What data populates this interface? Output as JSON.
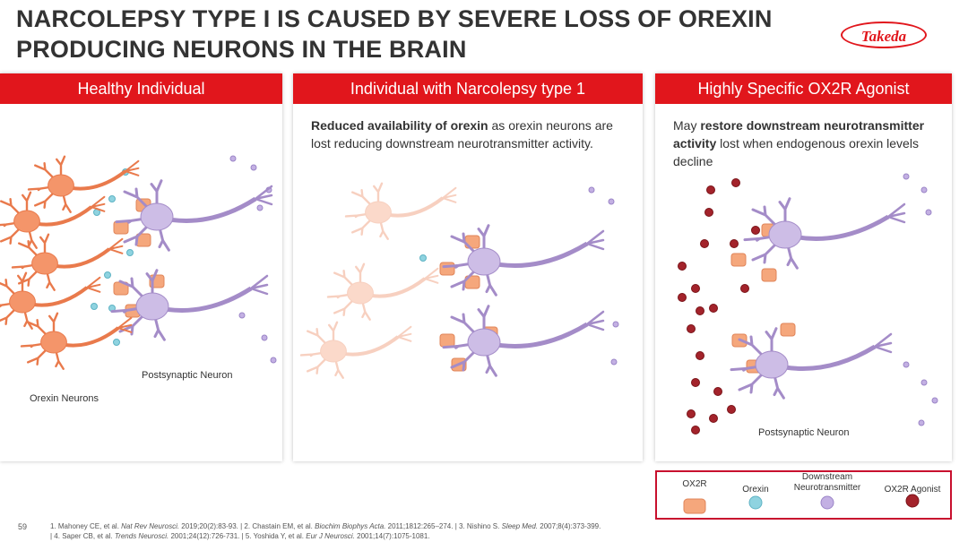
{
  "header": {
    "title_lines": [
      "NARCOLEPSY TYPE I IS CAUSED BY SEVERE LOSS OF OREXIN",
      "PRODUCING NEURONS IN THE BRAIN"
    ],
    "logo": "Takeda"
  },
  "panels": [
    {
      "heading": "Healthy Individual",
      "labels": [
        "Postsynaptic Neuron",
        "Orexin Neurons"
      ]
    },
    {
      "heading": "Individual with Narcolepsy type 1",
      "description": [
        {
          "text": "Reduced availability of orexin",
          "bold": true
        },
        {
          "text": " as orexin neurons are lost reducing downstream neurotransmitter activity.",
          "bold": false
        }
      ]
    },
    {
      "heading": "Highly Specific OX2R Agonist",
      "description": [
        {
          "text": "May ",
          "bold": false
        },
        {
          "text": "restore downstream neurotransmitter activity",
          "bold": true
        },
        {
          "text": " lost when endogenous orexin levels decline",
          "bold": false
        }
      ],
      "labels": [
        "Postsynaptic Neuron"
      ]
    }
  ],
  "legend": [
    "OX2R",
    "Orexin",
    "Downstream Neurotransmitter",
    "OX2R Agonist"
  ],
  "footer": {
    "page": "59",
    "references": [
      [
        {
          "text": "1. Mahoney CE, et al. ",
          "italic": false
        },
        {
          "text": "Nat Rev Neurosci.",
          "italic": true
        },
        {
          "text": " 2019;20(2):83-93. | 2. Chastain EM, et al. ",
          "italic": false
        },
        {
          "text": "Biochim Biophys Acta.",
          "italic": true
        },
        {
          "text": " 2011;1812:265–274. | 3. Nishino S. ",
          "italic": false
        },
        {
          "text": "Sleep Med.",
          "italic": true
        },
        {
          "text": " 2007;8(4):373-399.",
          "italic": false
        }
      ],
      [
        {
          "text": "| 4. Saper CB, et al. ",
          "italic": false
        },
        {
          "text": "Trends Neurosci.",
          "italic": true
        },
        {
          "text": " 2001;24(12):726-731. | 5. Yoshida Y, et al. ",
          "italic": false
        },
        {
          "text": "Eur J Neurosci.",
          "italic": true
        },
        {
          "text": " 2001;14(7):1075-1081.",
          "italic": false
        }
      ]
    ]
  }
}
